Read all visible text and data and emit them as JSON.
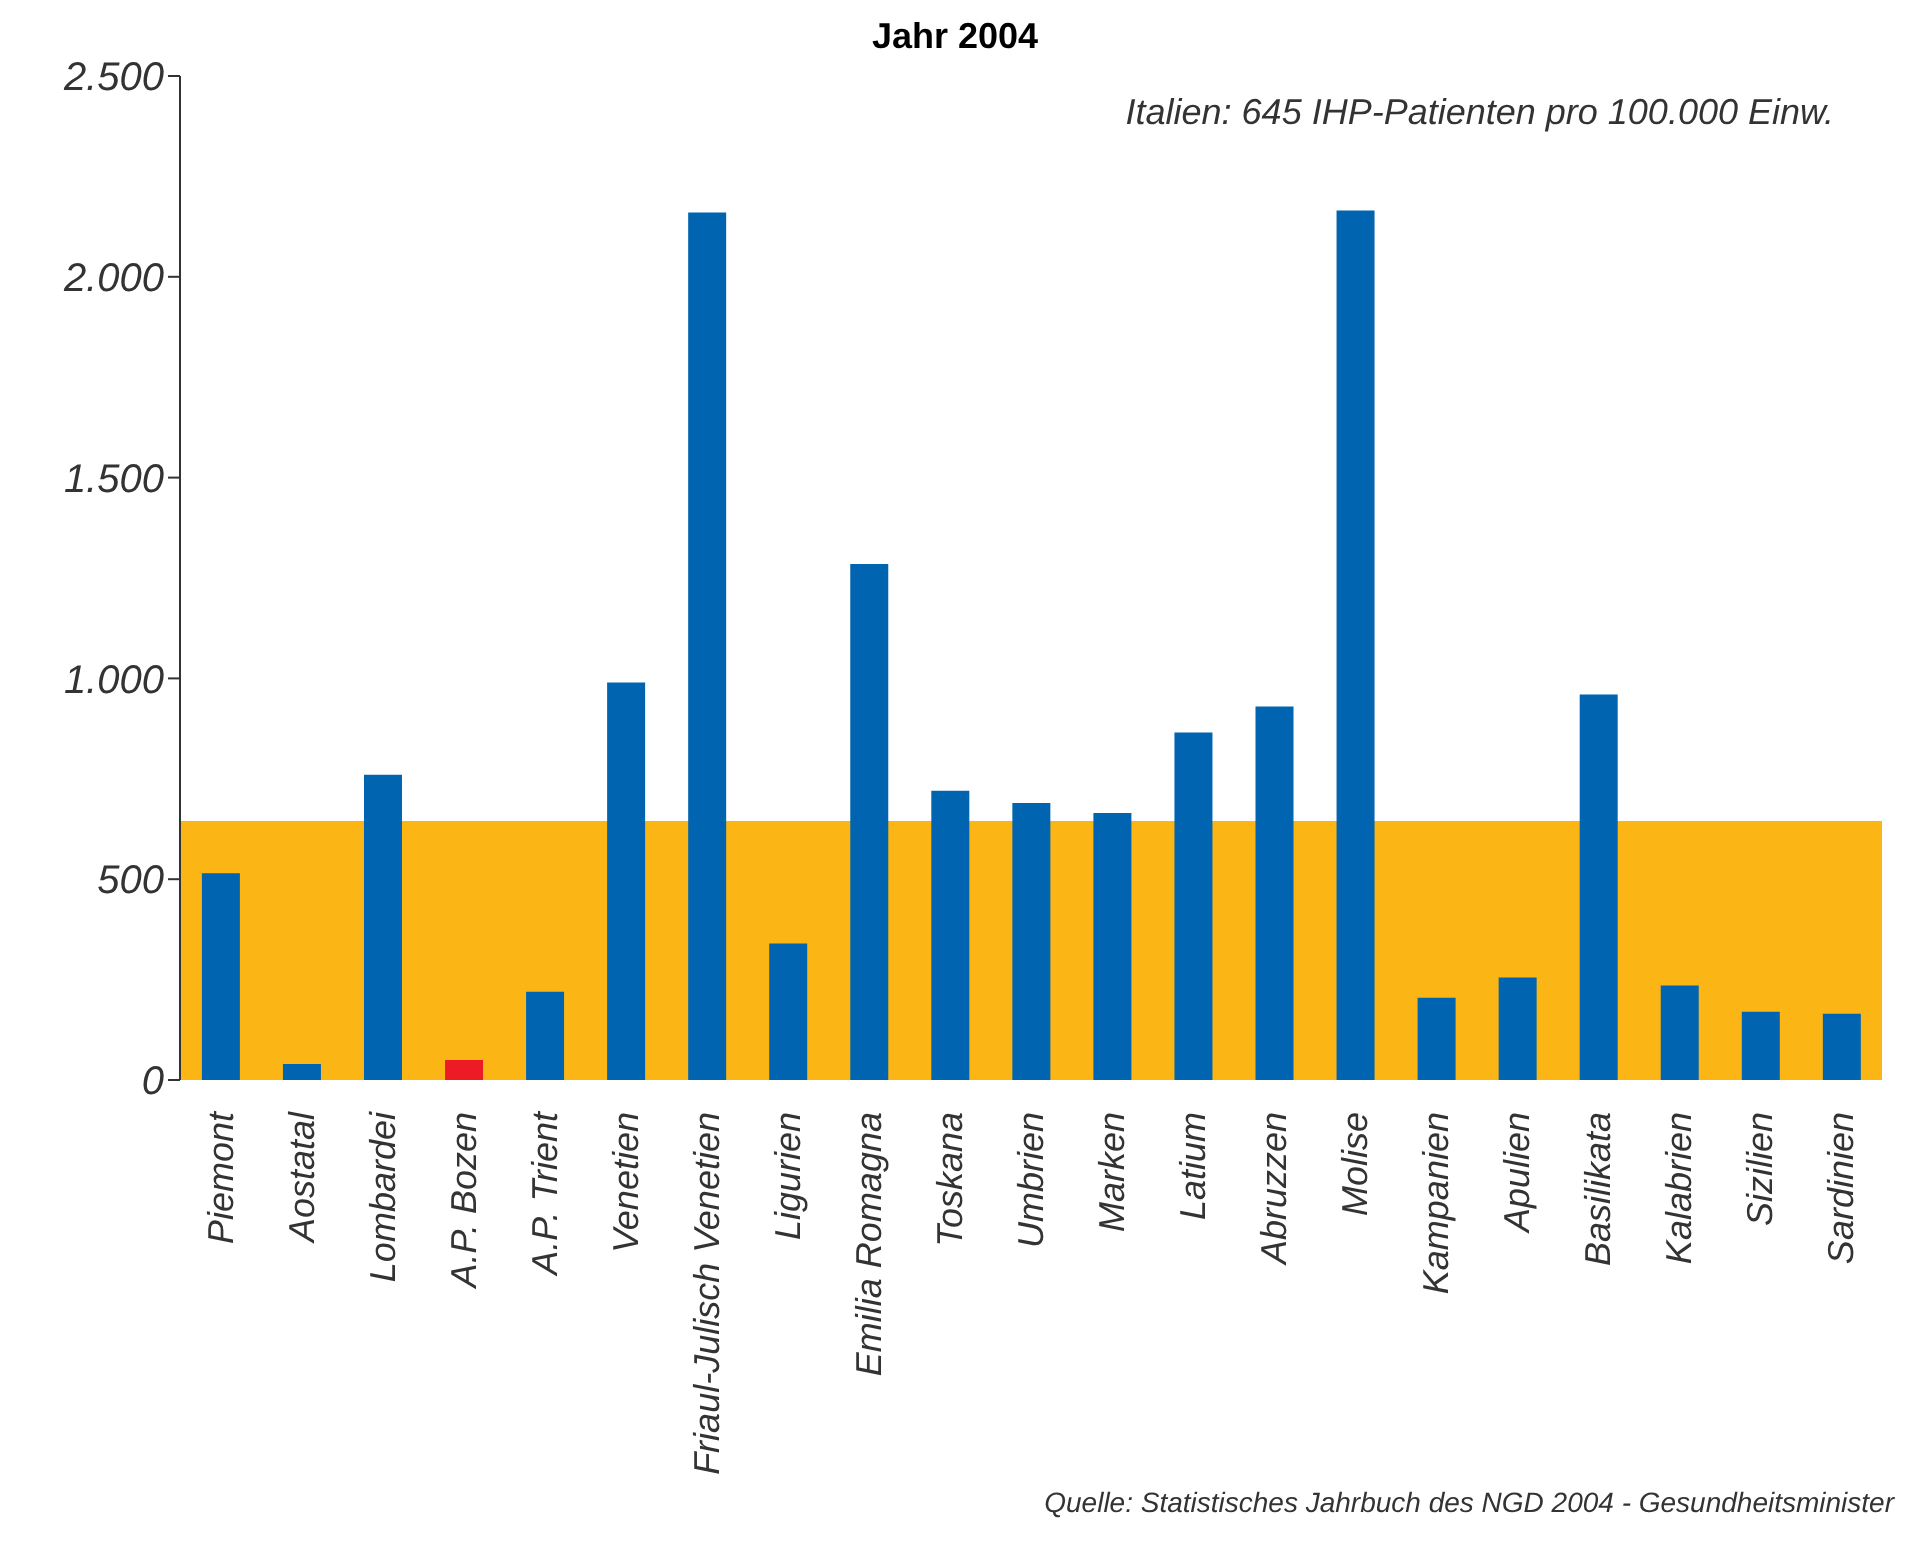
{
  "chart_data": {
    "type": "bar",
    "title": "Jahr 2004",
    "categories": [
      "Piemont",
      "Aostatal",
      "Lombardei",
      "A.P. Bozen",
      "A.P. Trient",
      "Venetien",
      "Friaul-Julisch Venetien",
      "Ligurien",
      "Emilia Romagna",
      "Toskana",
      "Umbrien",
      "Marken",
      "Latium",
      "Abruzzen",
      "Molise",
      "Kampanien",
      "Apulien",
      "Basilikata",
      "Kalabrien",
      "Sizilien",
      "Sardinien"
    ],
    "values": [
      515,
      40,
      760,
      50,
      220,
      990,
      2160,
      340,
      1285,
      720,
      690,
      665,
      865,
      930,
      2165,
      205,
      255,
      960,
      235,
      170,
      165
    ],
    "colors": [
      "#0064b0",
      "#0064b0",
      "#0064b0",
      "#ed1c24",
      "#0064b0",
      "#0064b0",
      "#0064b0",
      "#0064b0",
      "#0064b0",
      "#0064b0",
      "#0064b0",
      "#0064b0",
      "#0064b0",
      "#0064b0",
      "#0064b0",
      "#0064b0",
      "#0064b0",
      "#0064b0",
      "#0064b0",
      "#0064b0",
      "#0064b0"
    ],
    "ylim": [
      0,
      2500
    ],
    "yticks": [
      0,
      500,
      {
        "value": 1000,
        "label": "1.000"
      },
      {
        "value": 1500,
        "label": "1.500"
      },
      {
        "value": 2000,
        "label": "2.000"
      },
      {
        "value": 2500,
        "label": "2.500"
      }
    ],
    "bands": [
      {
        "axis": "y",
        "from": 0,
        "to": 645,
        "color": "#fbb615"
      }
    ],
    "grid": false,
    "legend": false,
    "annotations": [
      "Italien: 645 IHP-Patienten pro 100.000 Einw.",
      "Quelle: Statistisches Jahrbuch des NGD 2004 - Gesundheitsminister"
    ]
  }
}
